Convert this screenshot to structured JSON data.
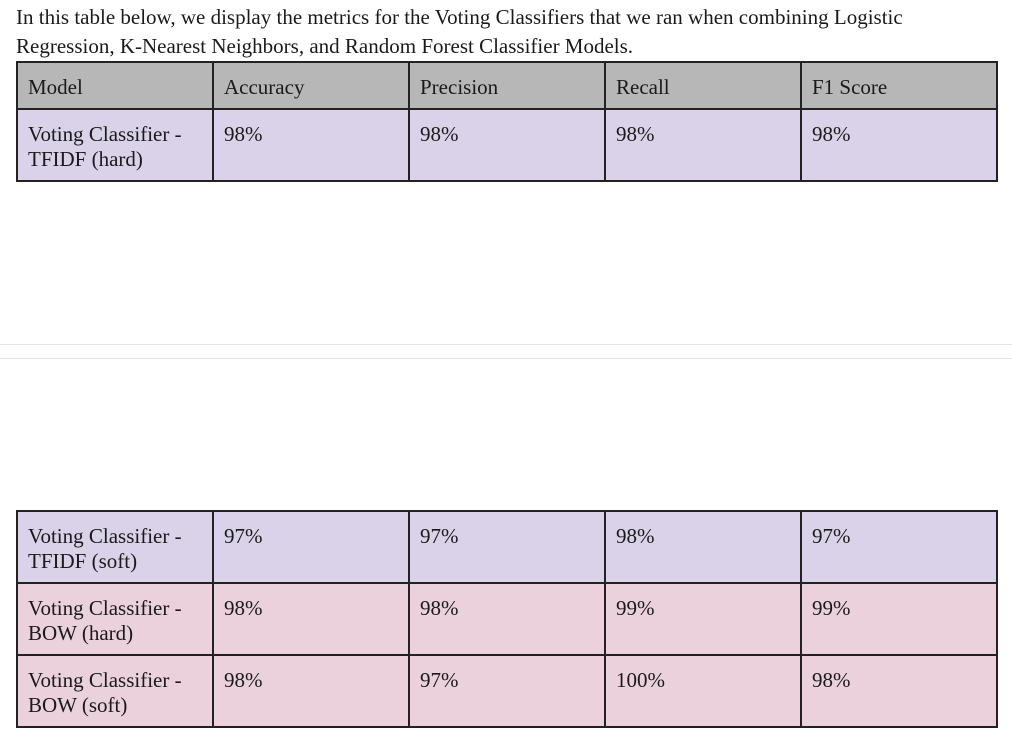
{
  "intro_text": "In this table below, we display the metrics for the Voting Classifiers that we ran when combining Logistic Regression, K-Nearest Neighbors, and Random Forest Classifier Models.",
  "table_top": {
    "headers": [
      "Model",
      "Accuracy",
      "Precision",
      "Recall",
      "F1 Score"
    ],
    "rows": [
      {
        "model": "Voting Classifier - TFIDF (hard)",
        "accuracy": "98%",
        "precision": "98%",
        "recall": "98%",
        "f1": "98%"
      }
    ]
  },
  "table_bottom": {
    "rows": [
      {
        "model": "Voting Classifier - TFIDF (soft)",
        "accuracy": "97%",
        "precision": "97%",
        "recall": "98%",
        "f1": "97%"
      },
      {
        "model": "Voting Classifier - BOW (hard)",
        "accuracy": "98%",
        "precision": "98%",
        "recall": "99%",
        "f1": "99%"
      },
      {
        "model": "Voting Classifier - BOW (soft)",
        "accuracy": "98%",
        "precision": "97%",
        "recall": "100%",
        "f1": "98%"
      }
    ]
  },
  "colors": {
    "header_bg": "#b7b7b7",
    "tfidf_row_bg": "#d9d2e9",
    "bow_row_bg": "#ead1dc"
  }
}
